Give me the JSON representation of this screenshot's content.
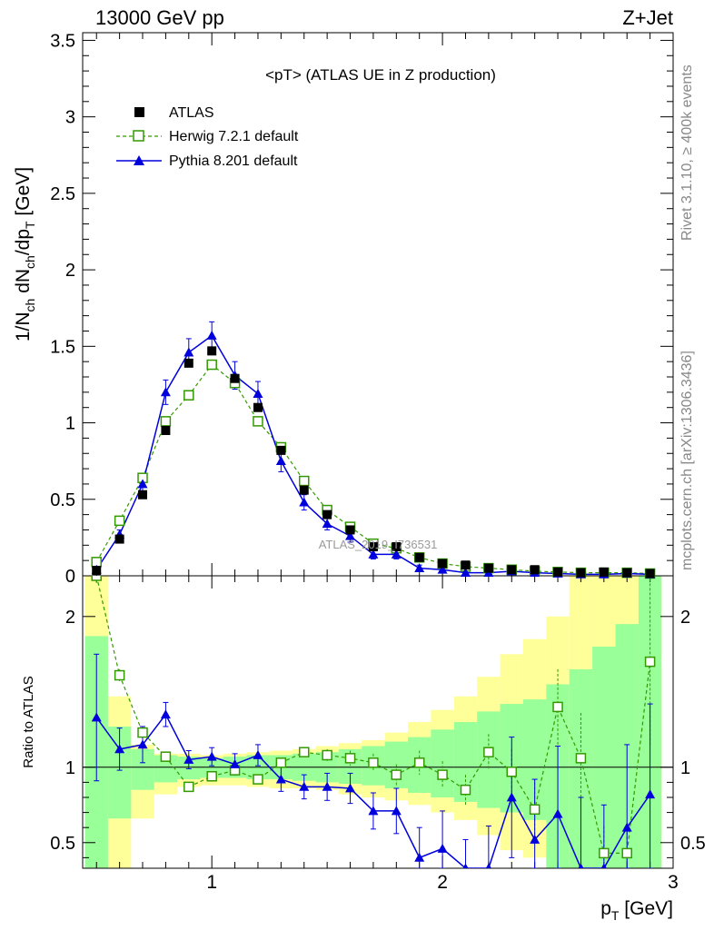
{
  "header": {
    "left": "13000 GeV pp",
    "right": "Z+Jet"
  },
  "side_text": {
    "top": "Rivet 3.1.10, ≥ 400k events",
    "bottom": "mcplots.cern.ch [arXiv:1306.3436]"
  },
  "watermark": "ATLAS_2019_I736531",
  "chart_data": {
    "type": "line",
    "title": "<pT> (ATLAS UE in Z production)",
    "xlabel": "p_T [GeV]",
    "ylabel": "1/N_ch dN_ch/dp_T [GeV]",
    "ratio_ylabel": "Ratio to ATLAS",
    "xlim": [
      0.44,
      3.0
    ],
    "ylim": [
      0,
      3.55
    ],
    "ratio_ylim": [
      0.33,
      2.27
    ],
    "x_ticks": [
      {
        "v": 1,
        "label": "1"
      },
      {
        "v": 2,
        "label": "2"
      },
      {
        "v": 3,
        "label": "3"
      }
    ],
    "y_ticks": [
      {
        "v": 0,
        "label": "0"
      },
      {
        "v": 0.5,
        "label": "0.5"
      },
      {
        "v": 1,
        "label": "1"
      },
      {
        "v": 1.5,
        "label": "1.5"
      },
      {
        "v": 2,
        "label": "2"
      },
      {
        "v": 2.5,
        "label": "2.5"
      },
      {
        "v": 3,
        "label": "3"
      },
      {
        "v": 3.5,
        "label": "3.5"
      }
    ],
    "ratio_y_ticks": [
      {
        "v": 0.5,
        "label": "0.5"
      },
      {
        "v": 1,
        "label": "1"
      },
      {
        "v": 2,
        "label": "2"
      }
    ],
    "x": [
      0.5,
      0.6,
      0.7,
      0.8,
      0.9,
      1.0,
      1.1,
      1.2,
      1.3,
      1.4,
      1.5,
      1.6,
      1.7,
      1.8,
      1.9,
      2.0,
      2.1,
      2.2,
      2.3,
      2.4,
      2.5,
      2.6,
      2.7,
      2.8,
      2.9
    ],
    "x_edges": [
      0.45,
      0.55,
      0.65,
      0.75,
      0.85,
      0.95,
      1.05,
      1.15,
      1.25,
      1.35,
      1.45,
      1.55,
      1.65,
      1.75,
      1.85,
      1.95,
      2.05,
      2.15,
      2.25,
      2.35,
      2.45,
      2.55,
      2.65,
      2.75,
      2.85,
      2.95
    ],
    "series": [
      {
        "name": "ATLAS",
        "color": "#000000",
        "marker": "filled-square",
        "values": [
          0.035,
          0.24,
          0.53,
          0.95,
          1.39,
          1.47,
          1.29,
          1.1,
          0.82,
          0.56,
          0.4,
          0.3,
          0.19,
          0.19,
          0.12,
          0.08,
          0.07,
          0.05,
          0.04,
          0.04,
          0.025,
          0.02,
          0.025,
          0.02,
          0.015
        ]
      },
      {
        "name": "Herwig 7.2.1 default",
        "color": "#339900",
        "marker": "open-square",
        "dash": true,
        "values": [
          0.09,
          0.36,
          0.64,
          1.01,
          1.18,
          1.38,
          1.26,
          1.01,
          0.84,
          0.62,
          0.43,
          0.32,
          0.21,
          0.18,
          0.12,
          0.08,
          0.06,
          0.05,
          0.04,
          0.03,
          0.025,
          0.02,
          0.02,
          0.02,
          0.015
        ],
        "ratio": [
          2.27,
          1.61,
          1.23,
          1.07,
          0.87,
          0.94,
          0.98,
          0.92,
          1.03,
          1.1,
          1.08,
          1.06,
          1.03,
          0.95,
          1.03,
          0.95,
          0.85,
          1.1,
          0.97,
          0.72,
          1.4,
          1.06,
          0.43,
          0.43,
          1.7
        ],
        "ratio_err": [
          0.05,
          0.04,
          0.03,
          0.02,
          0.02,
          0.02,
          0.02,
          0.02,
          0.02,
          0.03,
          0.04,
          0.05,
          0.06,
          0.07,
          0.08,
          0.09,
          0.1,
          0.12,
          0.15,
          0.18,
          0.25,
          0.3,
          0.18,
          0.2,
          0.55
        ]
      },
      {
        "name": "Pythia 8.201 default",
        "color": "#0000dd",
        "marker": "filled-triangle",
        "values": [
          0.04,
          0.27,
          0.6,
          1.2,
          1.46,
          1.57,
          1.31,
          1.19,
          0.75,
          0.48,
          0.34,
          0.26,
          0.14,
          0.14,
          0.05,
          0.04,
          0.02,
          0.02,
          0.03,
          0.02,
          0.015,
          0.01,
          0.01,
          0.015,
          0.01
        ],
        "errors": [
          0.01,
          0.03,
          0.05,
          0.08,
          0.09,
          0.09,
          0.09,
          0.08,
          0.07,
          0.05,
          0.04,
          0.04,
          0.03,
          0.03,
          0.02,
          0.02,
          0.01,
          0.01,
          0.01,
          0.01,
          0.01,
          0.01,
          0.01,
          0.01,
          0.01
        ],
        "ratio": [
          1.33,
          1.12,
          1.15,
          1.35,
          1.05,
          1.07,
          1.02,
          1.08,
          0.92,
          0.87,
          0.87,
          0.86,
          0.71,
          0.71,
          0.4,
          0.46,
          0.22,
          0.26,
          0.8,
          0.52,
          0.69,
          0.3,
          0.25,
          0.6,
          0.82
        ],
        "ratio_err": [
          0.42,
          0.14,
          0.12,
          0.08,
          0.06,
          0.06,
          0.07,
          0.07,
          0.08,
          0.08,
          0.09,
          0.1,
          0.12,
          0.15,
          0.2,
          0.25,
          0.3,
          0.35,
          0.4,
          0.4,
          0.45,
          0.5,
          0.5,
          0.55,
          0.6
        ]
      }
    ],
    "ratio_bands": {
      "green_color": "#99ff99",
      "yellow_color": "#ffff99",
      "green_lo": [
        0.33,
        0.66,
        0.85,
        0.9,
        0.92,
        0.93,
        0.93,
        0.92,
        0.92,
        0.91,
        0.9,
        0.89,
        0.88,
        0.86,
        0.83,
        0.8,
        0.77,
        0.73,
        0.7,
        0.65,
        0.33,
        0.33,
        0.33,
        0.33,
        0.33
      ],
      "green_hi": [
        1.87,
        1.27,
        1.12,
        1.08,
        1.07,
        1.06,
        1.07,
        1.08,
        1.08,
        1.09,
        1.1,
        1.12,
        1.14,
        1.17,
        1.2,
        1.25,
        1.3,
        1.37,
        1.42,
        1.45,
        1.55,
        1.65,
        1.8,
        1.95,
        2.27
      ],
      "yellow_lo": [
        0.33,
        0.33,
        0.66,
        0.82,
        0.87,
        0.88,
        0.88,
        0.87,
        0.86,
        0.86,
        0.85,
        0.82,
        0.8,
        0.78,
        0.75,
        0.7,
        0.65,
        0.55,
        0.45,
        0.4,
        0.33,
        0.33,
        0.33,
        0.33,
        0.33
      ],
      "yellow_hi": [
        2.27,
        1.47,
        1.15,
        1.09,
        1.09,
        1.08,
        1.09,
        1.1,
        1.11,
        1.12,
        1.14,
        1.16,
        1.18,
        1.23,
        1.3,
        1.38,
        1.47,
        1.6,
        1.75,
        1.85,
        2.0,
        2.27,
        2.27,
        2.27,
        2.27
      ]
    }
  }
}
